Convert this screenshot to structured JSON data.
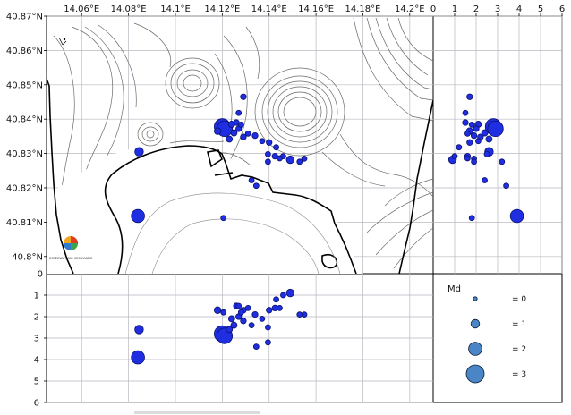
{
  "colors": {
    "quake_fill": "#1f2ee0",
    "quake_edge": "#0b1170",
    "legend_fill": "#4a86c5",
    "coast": "#000000",
    "contour": "#6a6a6a",
    "grid": "#b8b8c0"
  },
  "map": {
    "lon_ticks": [
      "14.06°E",
      "14.08°E",
      "14.1°E",
      "14.12°E",
      "14.14°E",
      "14.16°E",
      "14.18°E",
      "14.2°E"
    ],
    "lat_ticks": [
      "40.87°N",
      "40.86°N",
      "40.85°N",
      "40.84°N",
      "40.83°N",
      "40.82°N",
      "40.81°N",
      "40.8°N"
    ],
    "lon_range": [
      14.045,
      14.21
    ],
    "lat_range": [
      40.795,
      40.87
    ],
    "zero_label": "0",
    "logo_text": "OSSERVATORIO VESUVIANO"
  },
  "depth_axis": {
    "ticks": [
      "1",
      "2",
      "3",
      "4",
      "5",
      "6"
    ],
    "zero_label": "0",
    "top_ticks": [
      "1",
      "2",
      "3",
      "4",
      "5",
      "6"
    ],
    "range": [
      0,
      6
    ]
  },
  "legend": {
    "title": "Md",
    "items": [
      {
        "label": "= 0",
        "md": 0
      },
      {
        "label": "= 1",
        "md": 1
      },
      {
        "label": "= 2",
        "md": 2
      },
      {
        "label": "= 3",
        "md": 3
      }
    ]
  },
  "chart_data": {
    "type": "scatter",
    "series": [
      {
        "fields": [
          "lon",
          "lat",
          "depth_km",
          "md"
        ],
        "points": [
          [
            14.12,
            40.8378,
            2.8,
            2.6
          ],
          [
            14.121,
            40.8372,
            2.9,
            2.5
          ],
          [
            14.0845,
            40.8305,
            2.6,
            1.0
          ],
          [
            14.084,
            40.8118,
            3.9,
            2.0
          ],
          [
            14.1205,
            40.8112,
            1.8,
            0.3
          ],
          [
            14.118,
            40.8365,
            1.7,
            0.6
          ],
          [
            14.124,
            40.8385,
            2.1,
            0.5
          ],
          [
            14.126,
            40.839,
            1.5,
            0.4
          ],
          [
            14.128,
            40.8384,
            1.8,
            0.3
          ],
          [
            14.127,
            40.8372,
            2.0,
            0.4
          ],
          [
            14.125,
            40.836,
            2.4,
            0.5
          ],
          [
            14.129,
            40.8348,
            2.2,
            0.4
          ],
          [
            14.123,
            40.8342,
            2.6,
            0.5
          ],
          [
            14.131,
            40.8358,
            1.6,
            0.3
          ],
          [
            14.134,
            40.8352,
            1.9,
            0.4
          ],
          [
            14.137,
            40.8336,
            2.1,
            0.3
          ],
          [
            14.14,
            40.8332,
            1.7,
            0.4
          ],
          [
            14.143,
            40.8318,
            1.2,
            0.3
          ],
          [
            14.146,
            40.8292,
            1.0,
            0.3
          ],
          [
            14.149,
            40.8282,
            0.9,
            0.8
          ],
          [
            14.155,
            40.8285,
            1.9,
            0.3
          ],
          [
            14.153,
            40.8276,
            1.9,
            0.3
          ],
          [
            14.1425,
            40.8292,
            1.6,
            0.4
          ],
          [
            14.1445,
            40.8286,
            1.6,
            0.3
          ],
          [
            14.1395,
            40.8298,
            2.5,
            0.3
          ],
          [
            14.1395,
            40.8276,
            3.2,
            0.3
          ],
          [
            14.1325,
            40.8222,
            2.4,
            0.3
          ],
          [
            14.1345,
            40.8206,
            3.4,
            0.3
          ],
          [
            14.129,
            40.8465,
            1.7,
            0.4
          ],
          [
            14.127,
            40.8418,
            1.5,
            0.3
          ]
        ]
      }
    ]
  }
}
